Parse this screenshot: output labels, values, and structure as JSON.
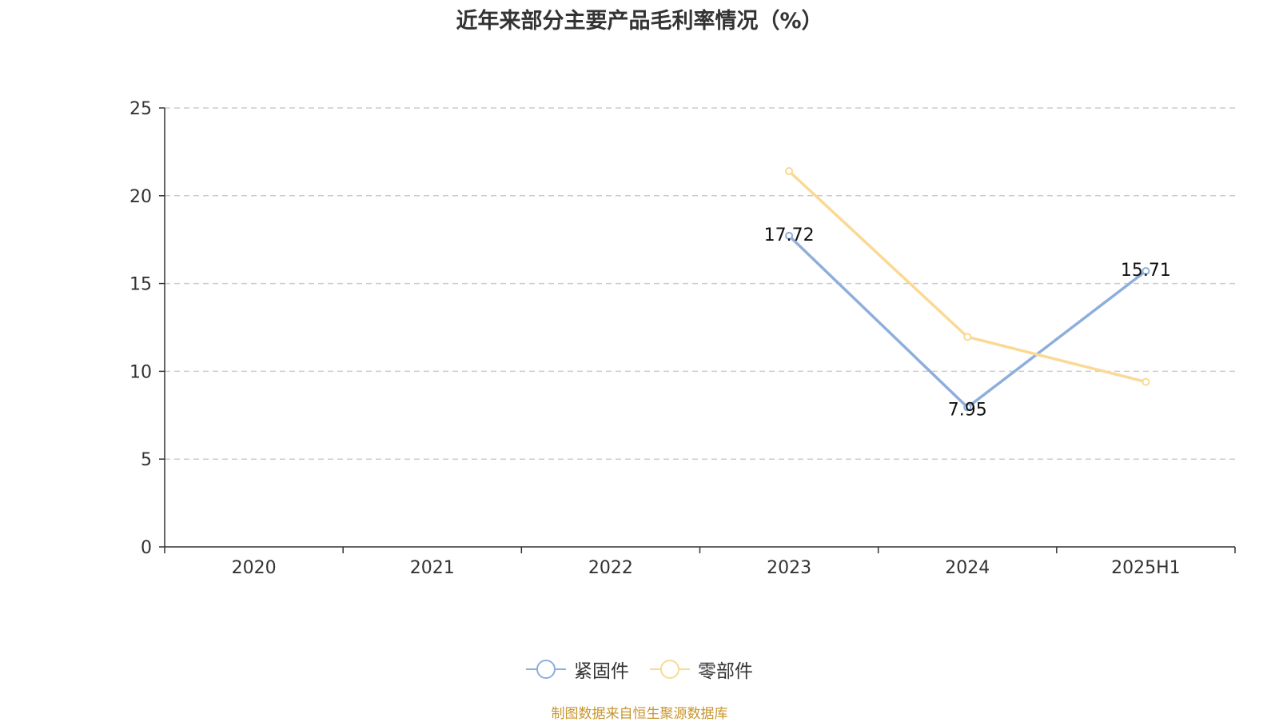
{
  "chart_data": {
    "type": "line",
    "title": "近年来部分主要产品毛利率情况（%）",
    "categories": [
      "2020",
      "2021",
      "2022",
      "2023",
      "2024",
      "2025H1"
    ],
    "ylim": [
      0,
      25
    ],
    "yticks": [
      "0",
      "5",
      "10",
      "15",
      "20",
      "25"
    ],
    "grid": true,
    "legend_position": "bottom",
    "series": [
      {
        "name": "紧固件",
        "color": "#8eaedb",
        "values": [
          null,
          null,
          null,
          17.72,
          7.95,
          15.71
        ],
        "labels": [
          "",
          "",
          "",
          "17.72",
          "7.95",
          "15.71"
        ]
      },
      {
        "name": "零部件",
        "color": "#fbd994",
        "values": [
          null,
          null,
          null,
          21.4,
          11.96,
          9.4
        ],
        "labels": [
          "",
          "",
          "",
          "",
          "",
          ""
        ]
      }
    ],
    "source": "制图数据来自恒生聚源数据库"
  }
}
